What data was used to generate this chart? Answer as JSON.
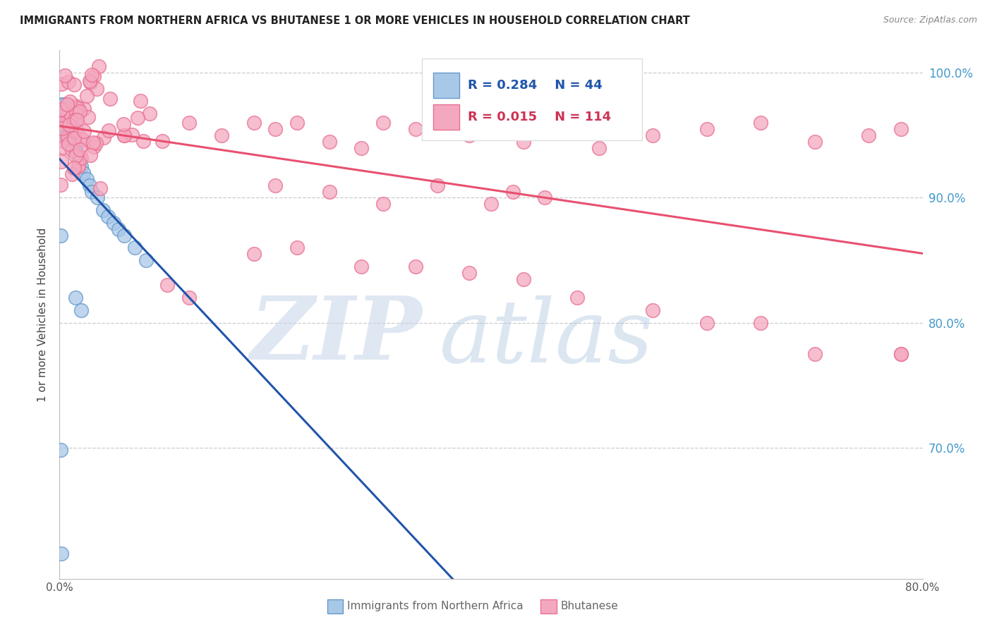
{
  "title": "IMMIGRANTS FROM NORTHERN AFRICA VS BHUTANESE 1 OR MORE VEHICLES IN HOUSEHOLD CORRELATION CHART",
  "source": "Source: ZipAtlas.com",
  "ylabel": "1 or more Vehicles in Household",
  "right_ytick_vals": [
    0.7,
    0.8,
    0.9,
    1.0
  ],
  "right_ytick_labels": [
    "70.0%",
    "80.0%",
    "90.0%",
    "100.0%"
  ],
  "xlim": [
    0.0,
    0.8
  ],
  "ylim": [
    0.595,
    1.018
  ],
  "legend_blue_r": "R = 0.284",
  "legend_blue_n": "N = 44",
  "legend_pink_r": "R = 0.015",
  "legend_pink_n": "N = 114",
  "legend_blue_label": "Immigrants from Northern Africa",
  "legend_pink_label": "Bhutanese",
  "blue_color": "#a8c8e8",
  "blue_edge": "#6699cc",
  "pink_color": "#f4a8c0",
  "pink_edge": "#e87090",
  "trend_blue_color": "#2255aa",
  "trend_pink_color": "#e85070",
  "watermark_zip": "ZIP",
  "watermark_atlas": "atlas",
  "watermark_color_zip": "#c8d8ee",
  "watermark_color_atlas": "#b8cce0",
  "title_color": "#222222",
  "source_color": "#888888",
  "ylabel_color": "#444444",
  "right_ytick_color": "#4499cc",
  "xtick_color": "#555555",
  "grid_color": "#cccccc",
  "legend_r_color_blue": "#2255aa",
  "legend_r_color_pink": "#cc3355",
  "legend_border_color": "#dddddd",
  "bottom_legend_color": "#666666"
}
